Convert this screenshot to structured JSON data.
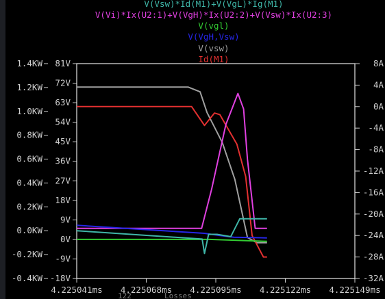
{
  "chart_data": {
    "type": "line",
    "legend": [
      {
        "text": "V(Vsw)*Id(M1)+V(VgL)*Ig(M1)",
        "color": "#3fb6a8"
      },
      {
        "text": "V(Vi)*Ix(U2:1)+V(VgH)*Ix(U2:2)+V(Vsw)*Ix(U2:3)",
        "color": "#e040e0"
      },
      {
        "text": "V(vgl)",
        "color": "#33cc33"
      },
      {
        "text": "V(VgH,Vsw)",
        "color": "#2626e6"
      },
      {
        "text": "V(vsw)",
        "color": "#a0a0a0"
      },
      {
        "text": "Id(M1)",
        "color": "#e33030"
      }
    ],
    "x_ticks": [
      "4.225041ms",
      "4.225068ms",
      "4.225095ms",
      "4.225122ms",
      "4.225149ms"
    ],
    "y_left_power_ticks": [
      "1.4KW",
      "1.2KW",
      "1.0KW",
      "0.8KW",
      "0.6KW",
      "0.4KW",
      "0.2KW",
      "0.0KW",
      "-0.2KW",
      "-0.4KW"
    ],
    "y_left_voltage_ticks": [
      "81V",
      "72V",
      "63V",
      "54V",
      "45V",
      "36V",
      "27V",
      "18V",
      "9V",
      "0V",
      "-9V",
      "-18V"
    ],
    "y_right_current_ticks": [
      "8A",
      "4A",
      "0A",
      "-4A",
      "-8A",
      "-12A",
      "-16A",
      "-20A",
      "-24A",
      "-28A",
      "-32A"
    ],
    "x_unit": "ms",
    "x_range": [
      4.225041,
      4.225149
    ],
    "ylim_voltage": [
      -18,
      81
    ],
    "ylim_power_kw": [
      -0.4,
      1.4
    ],
    "ylim_current_a": [
      -32,
      8
    ],
    "grid": false,
    "series": [
      {
        "name": "V(vsw)",
        "axis": "voltage",
        "color": "#a0a0a0",
        "x": [
          4.225041,
          4.2250843,
          4.2250889,
          4.2250916,
          4.2250975,
          4.2251024,
          4.2251073,
          4.2251109,
          4.2251149
        ],
        "y": [
          70.2,
          70.2,
          68,
          58.5,
          44.7,
          27.7,
          0.9,
          -1.5,
          -1.5
        ]
      },
      {
        "name": "Id(M1)",
        "axis": "current",
        "color": "#e33030",
        "x": [
          4.225041,
          4.2250856,
          4.2250906,
          4.2250945,
          4.2250966,
          4.2251032,
          4.2251066,
          4.2251091,
          4.2251135,
          4.2251149
        ],
        "y": [
          0.0,
          0.0,
          -3.5,
          -1.2,
          -1.5,
          -7.0,
          -13.0,
          -24.0,
          -28.0,
          -28.0
        ]
      },
      {
        "name": "V(Vi)*Ix(U2:1)+V(VgH)*Ix(U2:2)+V(Vsw)*Ix(U2:3)",
        "axis": "power",
        "color": "#e040e0",
        "x": [
          4.225041,
          4.2250895,
          4.2250934,
          4.2250989,
          4.2251036,
          4.2251058,
          4.2251073,
          4.2251103,
          4.2251149
        ],
        "y": [
          0.02,
          0.02,
          0.35,
          0.89,
          1.15,
          1.02,
          0.6,
          0.02,
          0.02
        ]
      },
      {
        "name": "V(VgH,Vsw)",
        "axis": "voltage",
        "color": "#2626e6",
        "x": [
          4.225041,
          4.2250906,
          4.2250966,
          4.225102,
          4.2251149
        ],
        "y": [
          6.5,
          2.8,
          1.8,
          1.0,
          0.7
        ]
      },
      {
        "name": "V(vgl)",
        "axis": "voltage",
        "color": "#33cc33",
        "x": [
          4.225041,
          4.2250926,
          4.2251149
        ],
        "y": [
          0,
          0,
          -0.9
        ]
      },
      {
        "name": "V(Vsw)*Id(M1)+V(VgL)*Ig(M1)",
        "axis": "power",
        "color": "#3fb6a8",
        "x": [
          4.225041,
          4.2250897,
          4.2250906,
          4.2250922,
          4.2250955,
          4.2251008,
          4.2251043,
          4.2251149
        ],
        "y": [
          0.0,
          -0.07,
          -0.19,
          -0.03,
          -0.03,
          -0.05,
          0.1,
          0.1
        ]
      }
    ]
  },
  "bottom_overlay": [
    "122",
    "Losses"
  ]
}
